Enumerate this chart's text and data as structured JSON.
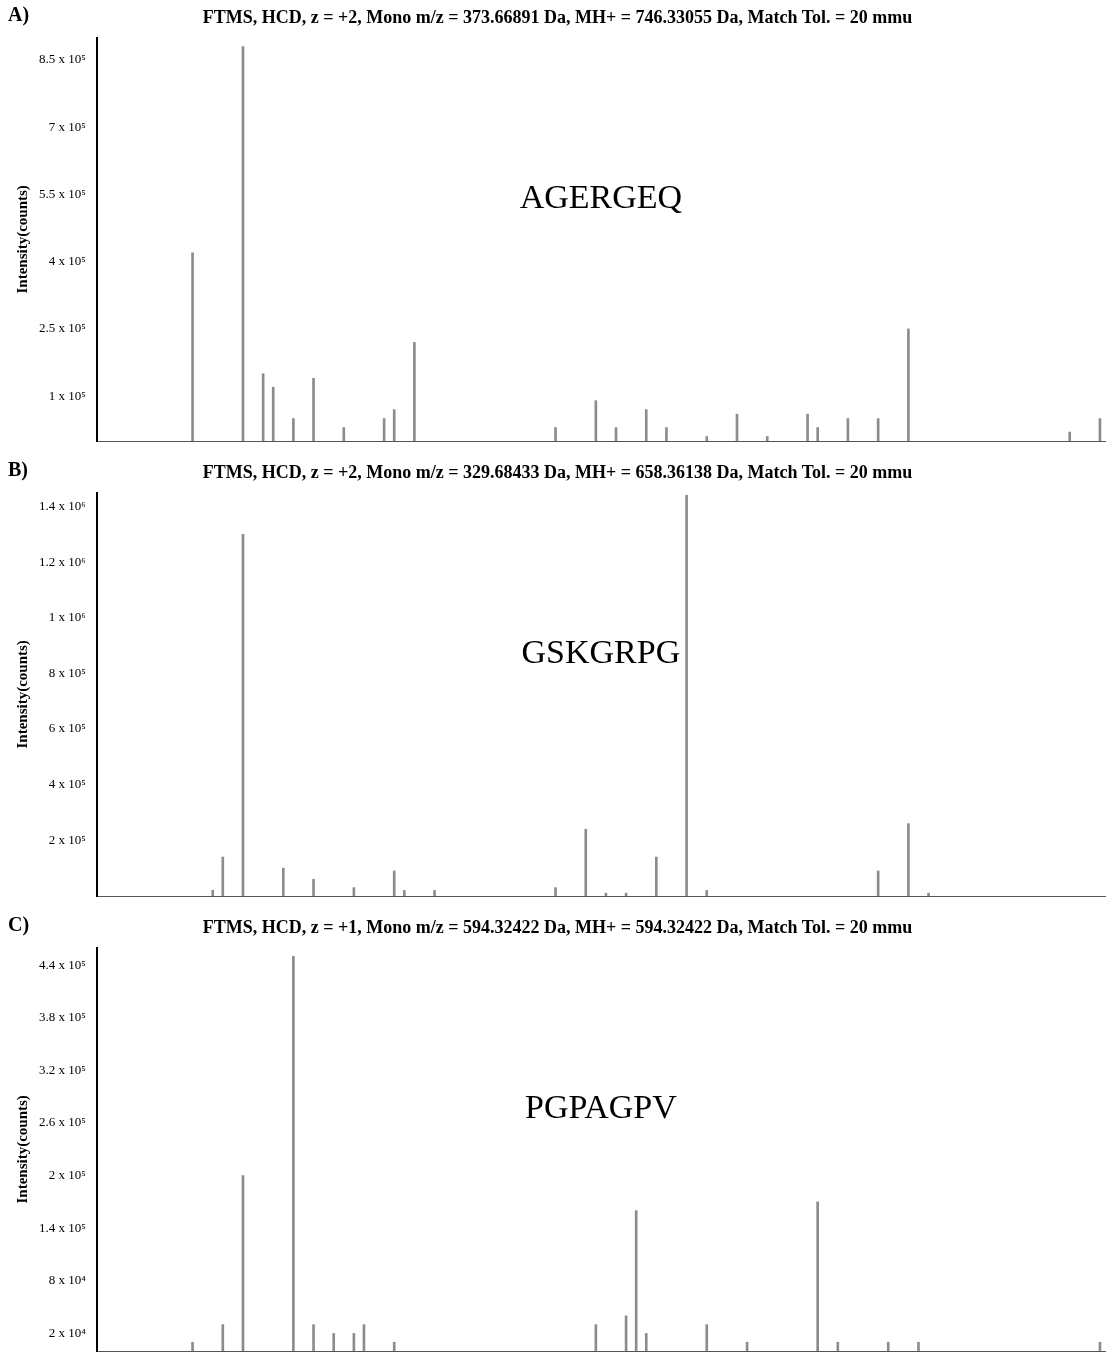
{
  "chart_data": [
    {
      "type": "bar",
      "title": "FTMS, HCD, z = +2, Mono m/z = 373.66891 Da, MH+ = 746.33055 Da, Match Tol. = 20 mmu",
      "ylabel": "Intensity(counts)",
      "annotations": [
        "A)",
        "AGERGEQ"
      ],
      "color": "#8c8c8c",
      "tick_labels": "y",
      "ylim": [
        0,
        900000
      ],
      "yticks": [
        {
          "value": 100000,
          "label": "1 x 10⁵"
        },
        {
          "value": 250000,
          "label": "2.5 x 10⁵"
        },
        {
          "value": 400000,
          "label": "4 x 10⁵"
        },
        {
          "value": 550000,
          "label": "5.5 x 10⁵"
        },
        {
          "value": 700000,
          "label": "7 x 10⁵"
        },
        {
          "value": 850000,
          "label": "8.5 x 10⁵"
        }
      ],
      "categories": [
        null,
        null,
        null,
        null,
        null,
        null,
        null,
        null,
        null,
        null,
        null,
        null,
        null,
        null,
        null,
        null,
        null,
        null,
        null,
        null,
        null,
        null,
        null,
        null,
        null,
        null,
        null,
        null,
        null,
        null,
        null,
        null,
        null,
        null,
        null,
        null,
        null,
        null,
        null,
        null,
        null,
        null,
        null,
        null,
        null,
        null,
        null,
        null,
        null,
        null,
        null,
        null,
        null,
        null,
        null,
        null,
        null,
        null,
        null,
        null,
        null,
        null,
        null,
        null,
        null,
        null,
        null,
        null,
        null,
        null,
        null,
        null,
        null,
        null,
        null,
        null,
        null,
        null,
        null,
        null,
        null,
        null,
        null,
        null,
        null,
        null,
        null,
        null,
        null,
        null,
        null,
        null,
        null,
        null,
        null,
        null,
        null,
        null,
        null,
        null
      ],
      "values": [
        null,
        null,
        null,
        null,
        null,
        null,
        null,
        null,
        null,
        420000,
        null,
        null,
        null,
        null,
        880000,
        null,
        150000,
        120000,
        null,
        50000,
        null,
        140000,
        null,
        null,
        30000,
        null,
        null,
        null,
        50000,
        70000,
        null,
        220000,
        null,
        null,
        null,
        null,
        null,
        null,
        null,
        null,
        null,
        null,
        null,
        null,
        null,
        30000,
        null,
        null,
        null,
        90000,
        null,
        30000,
        null,
        null,
        70000,
        null,
        30000,
        null,
        null,
        null,
        10000,
        null,
        null,
        60000,
        null,
        null,
        10000,
        null,
        null,
        null,
        60000,
        30000,
        null,
        null,
        50000,
        null,
        null,
        50000,
        null,
        null,
        250000,
        null,
        null,
        null,
        null,
        null,
        null,
        null,
        null,
        null,
        null,
        null,
        null,
        null,
        null,
        null,
        20000,
        null,
        null,
        50000
      ]
    },
    {
      "type": "bar",
      "title": "FTMS, HCD, z = +2, Mono m/z = 329.68433 Da, MH+ = 658.36138 Da, Match Tol. = 20 mmu",
      "ylabel": "Intensity(counts)",
      "annotations": [
        "B)",
        "GSKGRPG"
      ],
      "color": "#8c8c8c",
      "tick_labels": "y",
      "ylim": [
        0,
        1450000
      ],
      "yticks": [
        {
          "value": 200000,
          "label": "2 x 10⁵"
        },
        {
          "value": 400000,
          "label": "4 x 10⁵"
        },
        {
          "value": 600000,
          "label": "6 x 10⁵"
        },
        {
          "value": 800000,
          "label": "8 x 10⁵"
        },
        {
          "value": 1000000,
          "label": "1 x 10⁶"
        },
        {
          "value": 1200000,
          "label": "1.2 x 10⁶"
        },
        {
          "value": 1400000,
          "label": "1.4 x 10⁶"
        }
      ],
      "categories": [
        null,
        null,
        null,
        null,
        null,
        null,
        null,
        null,
        null,
        null,
        null,
        null,
        null,
        null,
        null,
        null,
        null,
        null,
        null,
        null,
        null,
        null,
        null,
        null,
        null,
        null,
        null,
        null,
        null,
        null,
        null,
        null,
        null,
        null,
        null,
        null,
        null,
        null,
        null,
        null,
        null,
        null,
        null,
        null,
        null,
        null,
        null,
        null,
        null,
        null,
        null,
        null,
        null,
        null,
        null,
        null,
        null,
        null,
        null,
        null,
        null,
        null,
        null,
        null,
        null,
        null,
        null,
        null,
        null,
        null,
        null,
        null,
        null,
        null,
        null,
        null,
        null,
        null,
        null,
        null,
        null,
        null,
        null,
        null,
        null,
        null,
        null,
        null,
        null,
        null,
        null,
        null,
        null,
        null,
        null,
        null,
        null,
        null,
        null,
        null
      ],
      "values": [
        null,
        null,
        null,
        null,
        null,
        null,
        null,
        null,
        null,
        null,
        null,
        20000,
        140000,
        null,
        1300000,
        null,
        null,
        null,
        100000,
        null,
        null,
        60000,
        null,
        null,
        null,
        30000,
        null,
        null,
        null,
        90000,
        20000,
        null,
        null,
        20000,
        null,
        null,
        null,
        null,
        null,
        null,
        null,
        null,
        null,
        null,
        null,
        30000,
        null,
        null,
        240000,
        null,
        10000,
        null,
        10000,
        null,
        null,
        140000,
        null,
        null,
        1440000,
        null,
        20000,
        null,
        null,
        null,
        null,
        null,
        null,
        null,
        null,
        null,
        null,
        null,
        null,
        null,
        null,
        null,
        null,
        90000,
        null,
        null,
        260000,
        null,
        10000,
        null,
        null,
        null,
        null,
        null,
        null,
        null,
        null,
        null,
        null,
        null,
        null,
        null,
        null,
        null,
        null,
        null
      ]
    },
    {
      "type": "bar",
      "title": "FTMS, HCD, z = +1, Mono m/z = 594.32422 Da, MH+ = 594.32422 Da, Match Tol. = 20 mmu",
      "ylabel": "Intensity(counts)",
      "annotations": [
        "C)",
        "PGPAGPV"
      ],
      "color": "#8c8c8c",
      "tick_labels": "y",
      "ylim": [
        0,
        460000
      ],
      "yticks": [
        {
          "value": 20000,
          "label": "2 x 10⁴"
        },
        {
          "value": 80000,
          "label": "8 x 10⁴"
        },
        {
          "value": 140000,
          "label": "1.4 x 10⁵"
        },
        {
          "value": 200000,
          "label": "2 x 10⁵"
        },
        {
          "value": 260000,
          "label": "2.6 x 10⁵"
        },
        {
          "value": 320000,
          "label": "3.2 x 10⁵"
        },
        {
          "value": 380000,
          "label": "3.8 x 10⁵"
        },
        {
          "value": 440000,
          "label": "4.4 x 10⁵"
        }
      ],
      "categories": [
        null,
        null,
        null,
        null,
        null,
        null,
        null,
        null,
        null,
        null,
        null,
        null,
        null,
        null,
        null,
        null,
        null,
        null,
        null,
        null,
        null,
        null,
        null,
        null,
        null,
        null,
        null,
        null,
        null,
        null,
        null,
        null,
        null,
        null,
        null,
        null,
        null,
        null,
        null,
        null,
        null,
        null,
        null,
        null,
        null,
        null,
        null,
        null,
        null,
        null,
        null,
        null,
        null,
        null,
        null,
        null,
        null,
        null,
        null,
        null,
        null,
        null,
        null,
        null,
        null,
        null,
        null,
        null,
        null,
        null,
        null,
        null,
        null,
        null,
        null,
        null,
        null,
        null,
        null,
        null,
        null,
        null,
        null,
        null,
        null,
        null,
        null,
        null,
        null,
        null,
        null,
        null,
        null,
        null,
        null,
        null,
        null,
        null,
        null,
        null
      ],
      "values": [
        null,
        null,
        null,
        null,
        null,
        null,
        null,
        null,
        null,
        10000,
        null,
        null,
        30000,
        null,
        200000,
        null,
        null,
        null,
        null,
        450000,
        null,
        30000,
        null,
        20000,
        null,
        20000,
        30000,
        null,
        null,
        10000,
        null,
        null,
        null,
        null,
        null,
        null,
        null,
        null,
        null,
        null,
        null,
        null,
        null,
        null,
        null,
        null,
        null,
        null,
        null,
        30000,
        null,
        null,
        40000,
        160000,
        20000,
        null,
        null,
        null,
        null,
        null,
        30000,
        null,
        null,
        null,
        10000,
        null,
        null,
        null,
        null,
        null,
        null,
        170000,
        null,
        10000,
        null,
        null,
        null,
        null,
        10000,
        null,
        null,
        10000,
        null,
        null,
        null,
        null,
        null,
        null,
        null,
        null,
        null,
        null,
        null,
        null,
        null,
        null,
        null,
        null,
        null,
        10000
      ]
    }
  ]
}
